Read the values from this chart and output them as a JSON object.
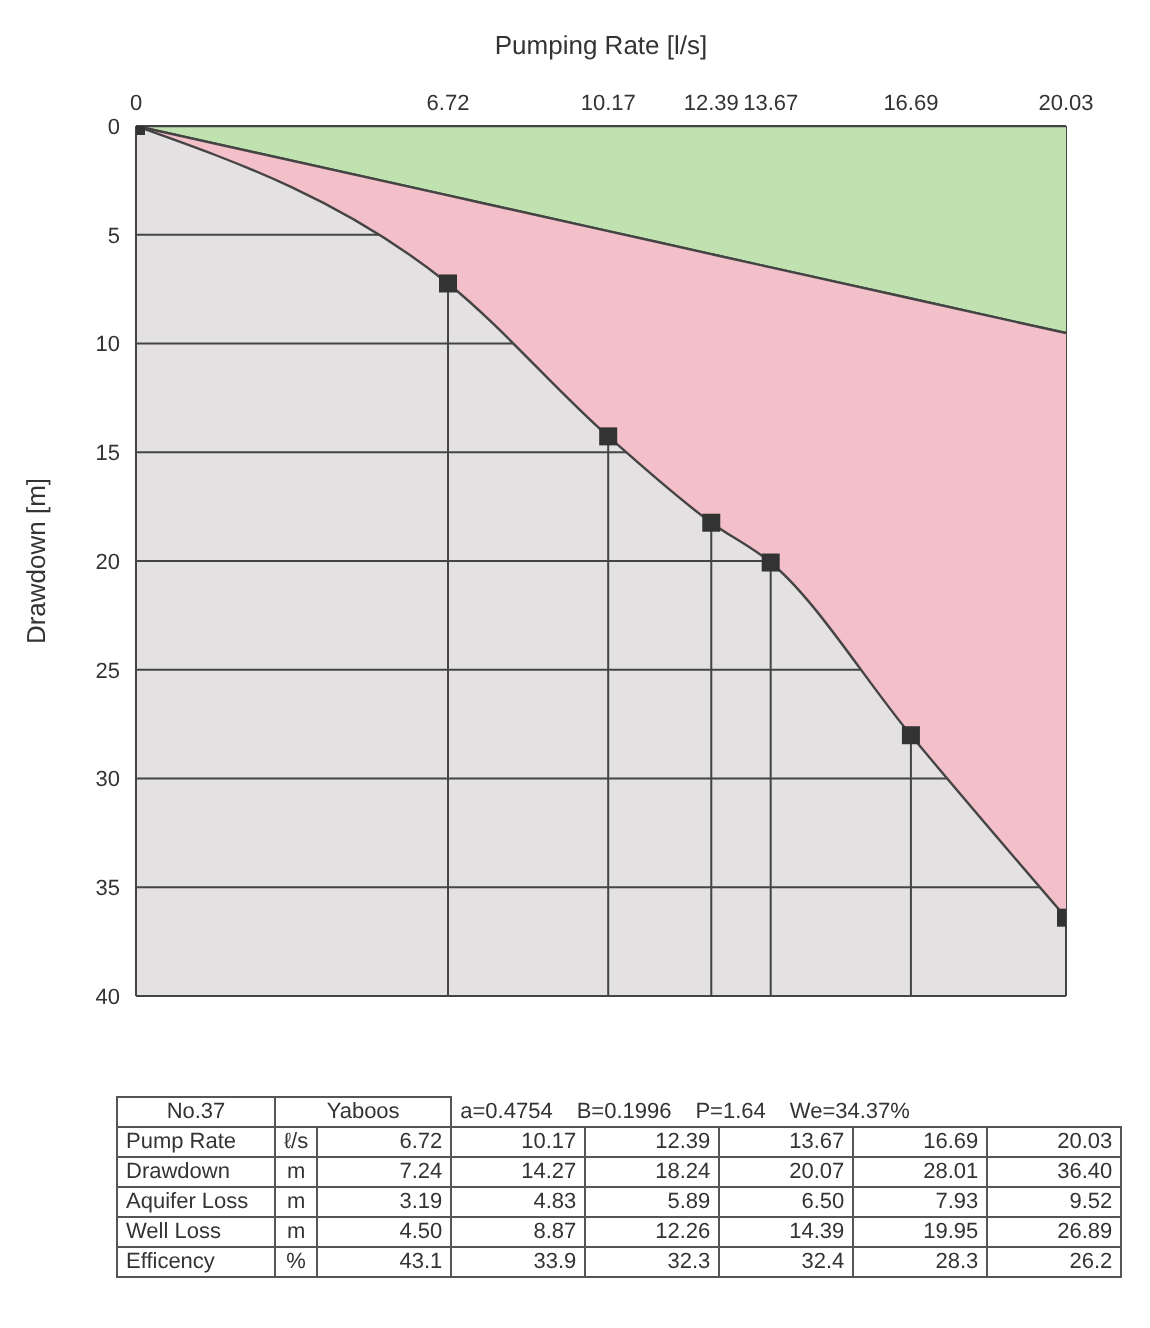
{
  "chart_data": [
    {
      "type": "area",
      "xlabel": "Pumping Rate [l/s]",
      "ylabel": "Drawdown [m]",
      "x": [
        0,
        6.72,
        10.17,
        12.39,
        13.67,
        16.69,
        20.03
      ],
      "series": [
        {
          "type": "area",
          "color": "#bfe2b0",
          "values": [
            0,
            3.19,
            4.83,
            5.89,
            6.5,
            7.93,
            9.52
          ],
          "marker": "none"
        },
        {
          "type": "area",
          "color": "#f3bfc8",
          "values": [
            0,
            7.24,
            14.27,
            18.24,
            20.07,
            28.01,
            36.4
          ],
          "marker": "square"
        }
      ],
      "xlim": [
        0,
        20.03
      ],
      "xticks": [
        0,
        6.72,
        10.17,
        12.39,
        13.67,
        16.69,
        20.03
      ],
      "ylim": [
        40,
        0
      ],
      "yticks": [
        0,
        5,
        10,
        15,
        20,
        25,
        30,
        35,
        40
      ],
      "grid": true,
      "legend": false
    },
    {
      "type": "other",
      "annotations": [
        "No.37",
        "Yaboos",
        "a=0.4754",
        "B=0.1996",
        "P=1.64",
        "We=34.37%",
        "Pump Rate",
        "ℓ/s",
        "6.72",
        "10.17",
        "12.39",
        "13.67",
        "16.69",
        "20.03",
        "Drawdown",
        "m",
        "7.24",
        "14.27",
        "18.24",
        "20.07",
        "28.01",
        "36.40",
        "Aquifer Loss",
        "m",
        "3.19",
        "4.83",
        "5.89",
        "6.50",
        "7.93",
        "9.52",
        "Well Loss",
        "m",
        "4.50",
        "8.87",
        "12.26",
        "14.39",
        "19.95",
        "26.89",
        "Efficency",
        "%",
        "43.1",
        "33.9",
        "32.3",
        "32.4",
        "28.3",
        "26.2"
      ]
    }
  ]
}
